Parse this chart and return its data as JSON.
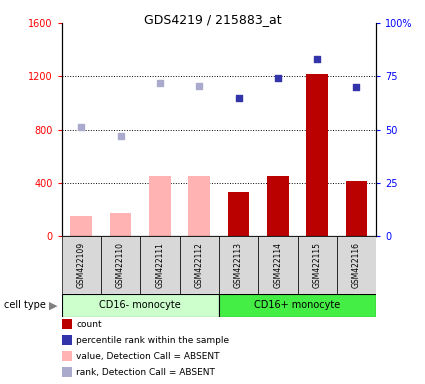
{
  "title": "GDS4219 / 215883_at",
  "samples": [
    "GSM422109",
    "GSM422110",
    "GSM422111",
    "GSM422112",
    "GSM422113",
    "GSM422114",
    "GSM422115",
    "GSM422116"
  ],
  "bar_values_absent": [
    150,
    175,
    450,
    450,
    null,
    null,
    null,
    null
  ],
  "bar_values_present": [
    null,
    null,
    null,
    null,
    330,
    450,
    1220,
    415
  ],
  "scatter_rank_absent": [
    820,
    755,
    1150,
    1130,
    null,
    null,
    null,
    null
  ],
  "scatter_rank_present": [
    null,
    null,
    null,
    null,
    1040,
    1190,
    1330,
    1120
  ],
  "ylim_left": [
    0,
    1600
  ],
  "ylim_right": [
    0,
    100
  ],
  "yticks_left": [
    0,
    400,
    800,
    1200,
    1600
  ],
  "ytick_labels_left": [
    "0",
    "400",
    "800",
    "1200",
    "1600"
  ],
  "ytick_labels_right": [
    "0",
    "25",
    "50",
    "75",
    "100%"
  ],
  "bar_color_absent": "#ffb3b3",
  "bar_color_present": "#bb0000",
  "scatter_color_absent": "#aaaacc",
  "scatter_color_present": "#3333aa",
  "group1_label": "CD16- monocyte",
  "group2_label": "CD16+ monocyte",
  "group1_color": "#ccffcc",
  "group2_color": "#44ee44",
  "cell_type_label": "cell type",
  "legend_items": [
    {
      "label": "count",
      "color": "#bb0000"
    },
    {
      "label": "percentile rank within the sample",
      "color": "#3333aa"
    },
    {
      "label": "value, Detection Call = ABSENT",
      "color": "#ffb3b3"
    },
    {
      "label": "rank, Detection Call = ABSENT",
      "color": "#aaaacc"
    }
  ]
}
